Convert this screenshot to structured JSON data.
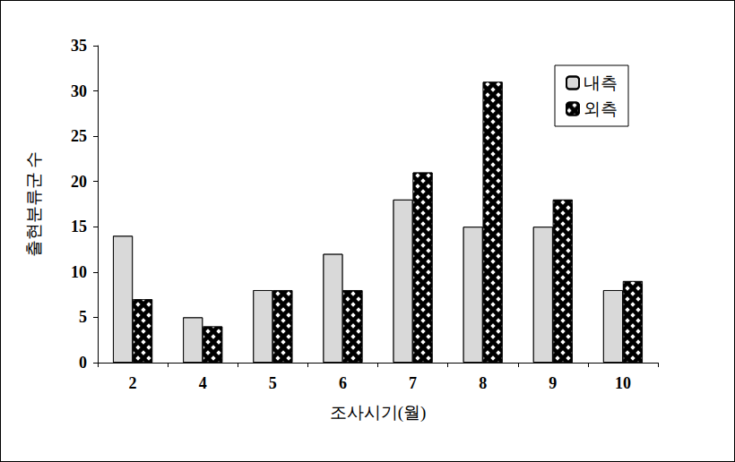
{
  "chart_data": {
    "type": "bar",
    "x_label": "조사시기(월)",
    "y_label": "출현분류군 수",
    "categories": [
      "2",
      "4",
      "5",
      "6",
      "7",
      "8",
      "9",
      "10"
    ],
    "series": [
      {
        "name": "내측",
        "color": "#d9d9d9",
        "values": [
          14,
          5,
          8,
          12,
          18,
          15,
          15,
          8
        ]
      },
      {
        "name": "외측",
        "color": "#000000",
        "values": [
          7,
          4,
          8,
          8,
          21,
          31,
          18,
          9
        ]
      }
    ],
    "ylim": [
      0,
      35
    ],
    "yticks": [
      0,
      5,
      10,
      15,
      20,
      25,
      30,
      35
    ],
    "grid": false,
    "legend": "upper right"
  }
}
